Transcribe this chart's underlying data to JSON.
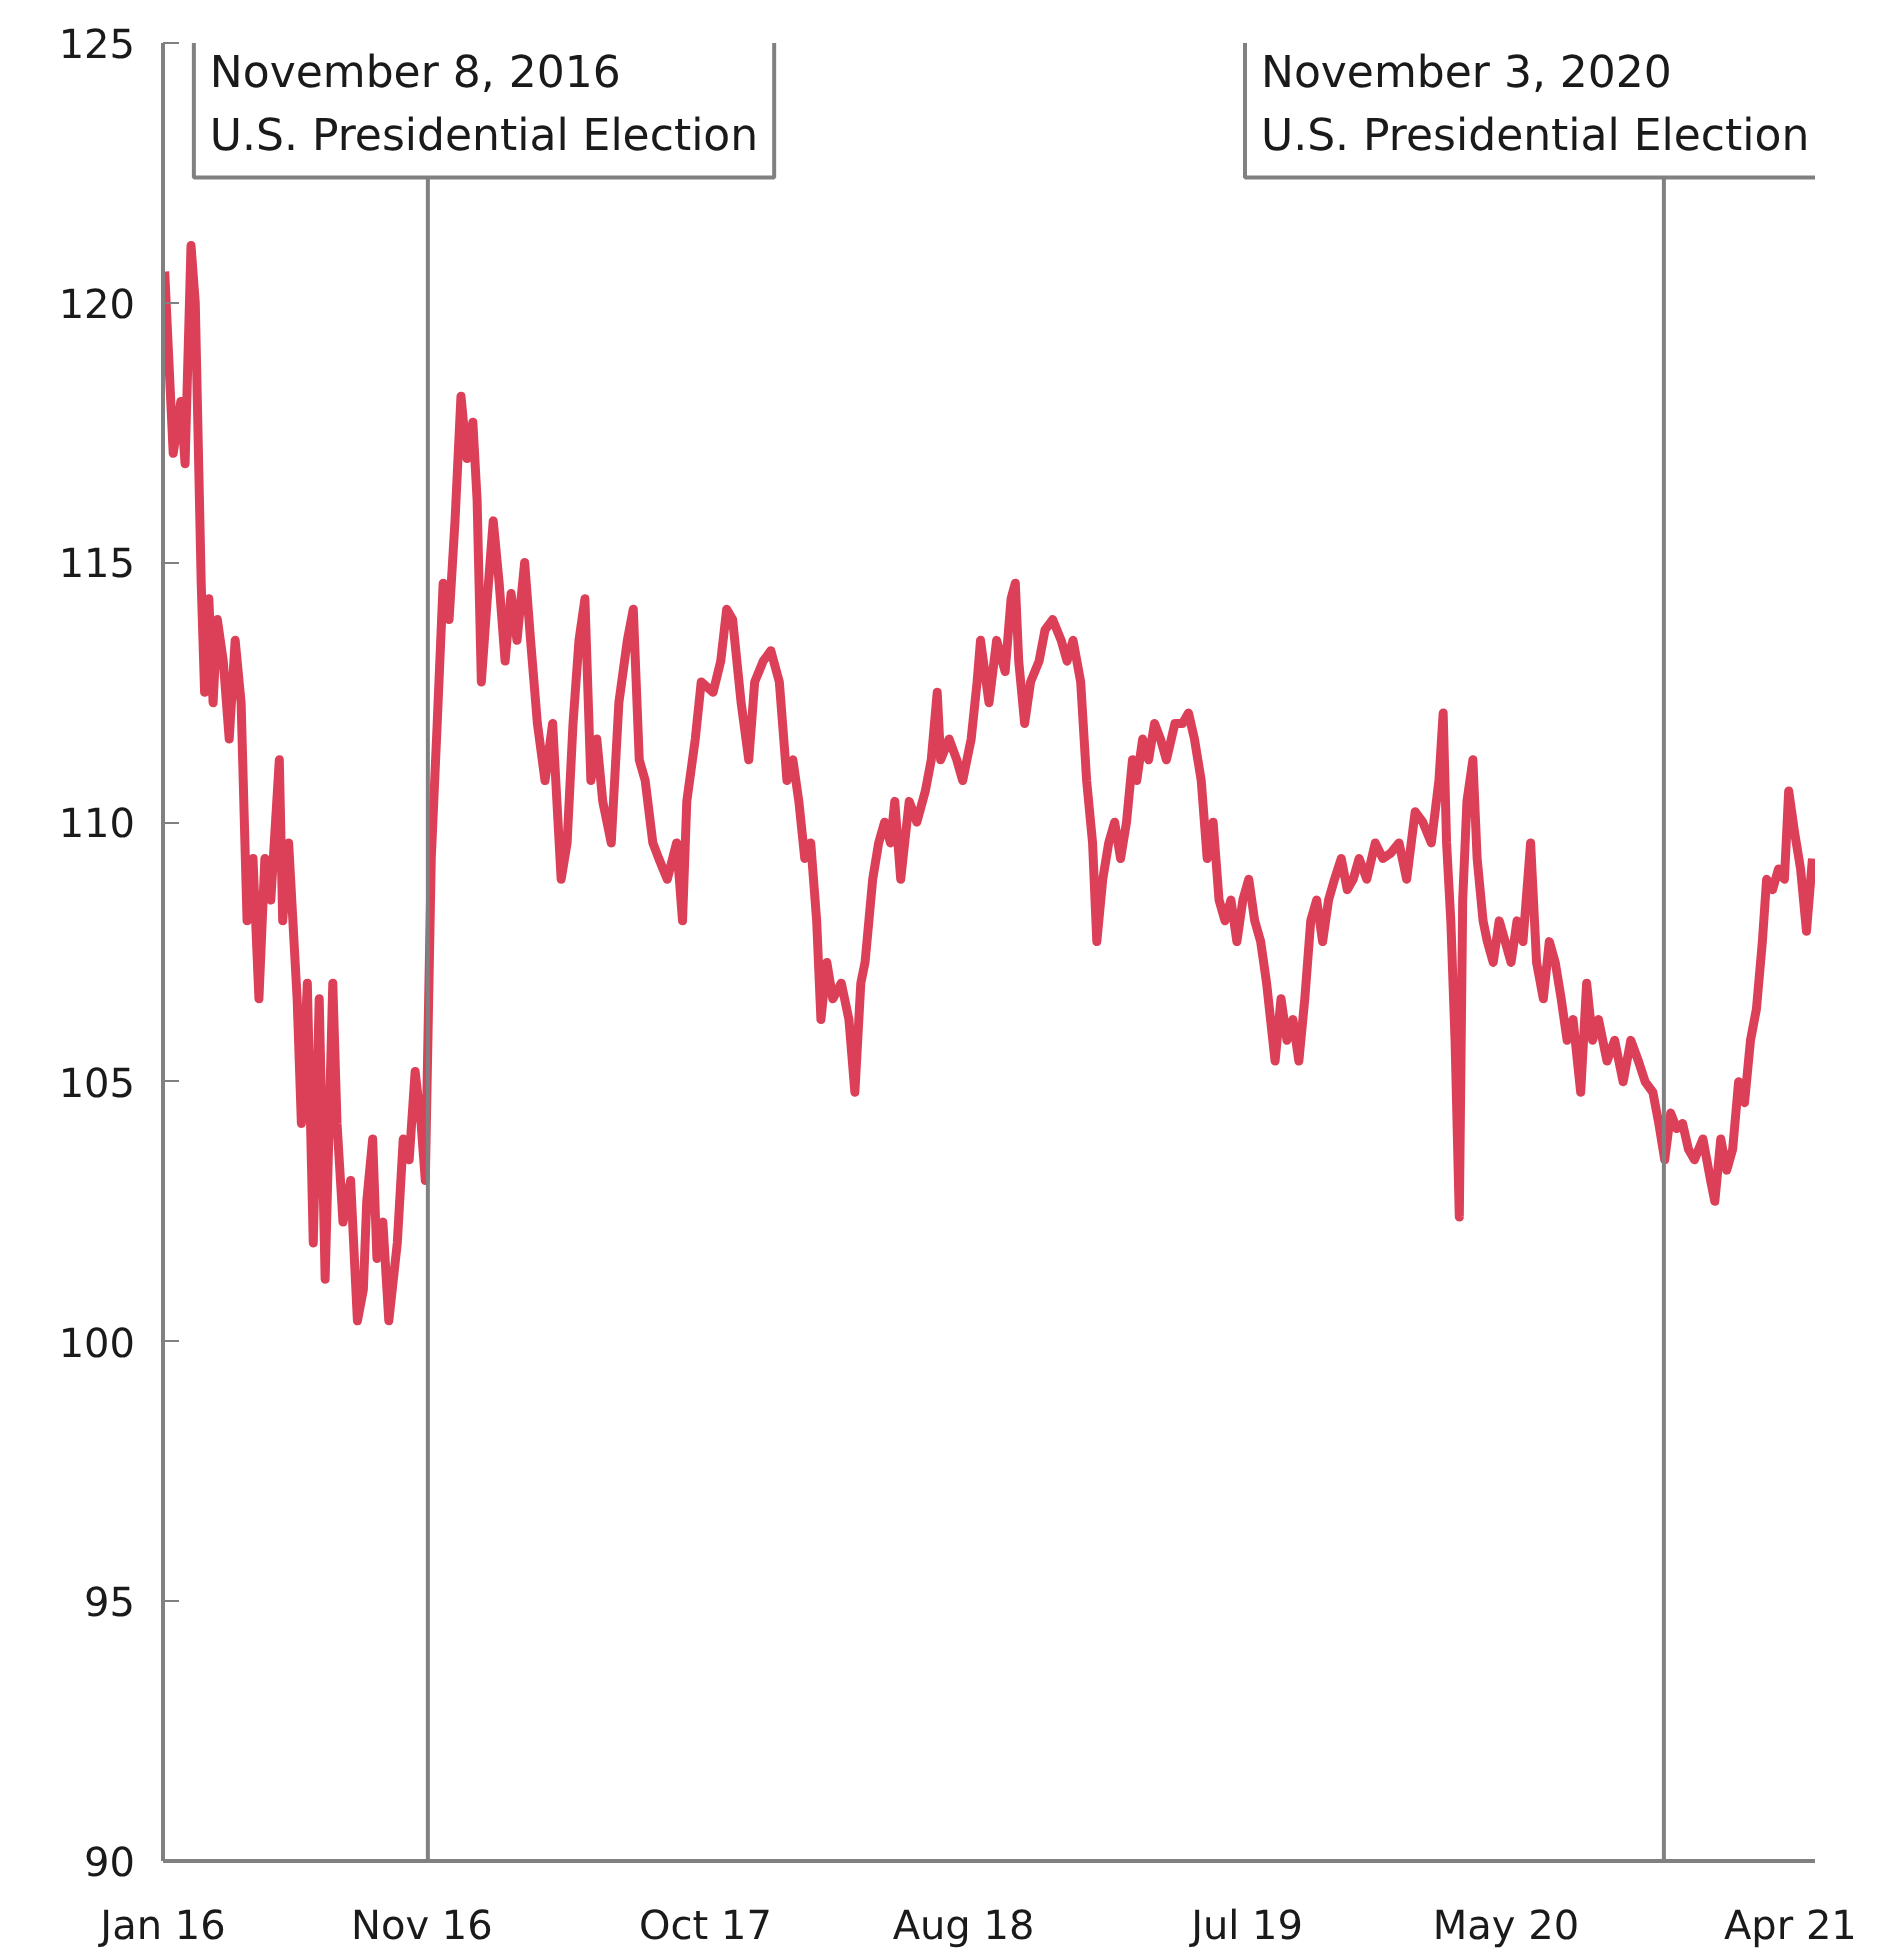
{
  "chart_data": {
    "type": "line",
    "x": [
      "2016-01-03",
      "2016-01-13",
      "2016-01-22",
      "2016-01-27",
      "2016-02-03",
      "2016-02-08",
      "2016-02-15",
      "2016-02-19",
      "2016-02-24",
      "2016-02-29",
      "2016-03-05",
      "2016-03-12",
      "2016-03-19",
      "2016-03-26",
      "2016-04-02",
      "2016-04-09",
      "2016-04-16",
      "2016-04-23",
      "2016-04-30",
      "2016-05-07",
      "2016-05-17",
      "2016-05-21",
      "2016-05-28",
      "2016-06-07",
      "2016-06-12",
      "2016-06-19",
      "2016-06-26",
      "2016-07-03",
      "2016-07-10",
      "2016-07-19",
      "2016-07-24",
      "2016-07-31",
      "2016-08-09",
      "2016-08-17",
      "2016-08-24",
      "2016-08-28",
      "2016-09-04",
      "2016-09-09",
      "2016-09-16",
      "2016-09-23",
      "2016-10-03",
      "2016-10-10",
      "2016-10-17",
      "2016-10-24",
      "2016-10-31",
      "2016-11-05",
      "2016-11-12",
      "2016-11-19",
      "2016-11-26",
      "2016-12-03",
      "2016-12-10",
      "2016-12-17",
      "2016-12-24",
      "2016-12-31",
      "2017-01-05",
      "2017-01-10",
      "2017-01-17",
      "2017-01-24",
      "2017-01-31",
      "2017-02-07",
      "2017-02-14",
      "2017-02-21",
      "2017-03-02",
      "2017-03-09",
      "2017-03-17",
      "2017-03-26",
      "2017-04-04",
      "2017-04-14",
      "2017-04-21",
      "2017-04-28",
      "2017-05-05",
      "2017-05-12",
      "2017-05-19",
      "2017-05-26",
      "2017-06-02",
      "2017-06-12",
      "2017-06-21",
      "2017-07-01",
      "2017-07-08",
      "2017-07-15",
      "2017-07-22",
      "2017-07-31",
      "2017-08-07",
      "2017-08-17",
      "2017-08-28",
      "2017-09-04",
      "2017-09-09",
      "2017-09-19",
      "2017-09-26",
      "2017-10-10",
      "2017-10-19",
      "2017-10-26",
      "2017-11-02",
      "2017-11-12",
      "2017-11-21",
      "2017-11-28",
      "2017-12-08",
      "2017-12-17",
      "2017-12-27",
      "2018-01-05",
      "2018-01-12",
      "2018-01-19",
      "2018-01-26",
      "2018-02-02",
      "2018-02-09",
      "2018-02-14",
      "2018-02-21",
      "2018-02-28",
      "2018-03-10",
      "2018-03-19",
      "2018-03-26",
      "2018-04-02",
      "2018-04-07",
      "2018-04-16",
      "2018-04-23",
      "2018-04-30",
      "2018-05-07",
      "2018-05-12",
      "2018-05-19",
      "2018-05-29",
      "2018-06-07",
      "2018-06-17",
      "2018-06-24",
      "2018-07-01",
      "2018-07-05",
      "2018-07-15",
      "2018-07-24",
      "2018-07-31",
      "2018-08-10",
      "2018-08-17",
      "2018-08-21",
      "2018-08-31",
      "2018-09-09",
      "2018-09-19",
      "2018-09-26",
      "2018-10-01",
      "2018-10-05",
      "2018-10-12",
      "2018-10-19",
      "2018-10-29",
      "2018-11-05",
      "2018-11-14",
      "2018-11-24",
      "2018-12-01",
      "2018-12-08",
      "2018-12-17",
      "2018-12-24",
      "2018-12-31",
      "2019-01-05",
      "2019-01-12",
      "2019-01-19",
      "2019-01-26",
      "2019-02-02",
      "2019-02-09",
      "2019-02-16",
      "2019-02-21",
      "2019-02-28",
      "2019-03-07",
      "2019-03-14",
      "2019-03-21",
      "2019-03-28",
      "2019-04-07",
      "2019-04-16",
      "2019-04-23",
      "2019-04-30",
      "2019-05-08",
      "2019-05-15",
      "2019-05-22",
      "2019-05-29",
      "2019-06-05",
      "2019-06-12",
      "2019-06-19",
      "2019-06-26",
      "2019-07-03",
      "2019-07-10",
      "2019-07-17",
      "2019-07-24",
      "2019-08-03",
      "2019-08-10",
      "2019-08-17",
      "2019-08-24",
      "2019-08-31",
      "2019-09-07",
      "2019-09-14",
      "2019-09-21",
      "2019-09-28",
      "2019-10-05",
      "2019-10-12",
      "2019-10-20",
      "2019-10-27",
      "2019-11-03",
      "2019-11-10",
      "2019-11-19",
      "2019-11-29",
      "2019-12-08",
      "2019-12-17",
      "2019-12-27",
      "2020-01-05",
      "2020-01-15",
      "2020-01-24",
      "2020-02-03",
      "2020-02-12",
      "2020-02-17",
      "2020-02-21",
      "2020-02-26",
      "2020-03-02",
      "2020-03-07",
      "2020-03-11",
      "2020-03-16",
      "2020-03-23",
      "2020-03-28",
      "2020-04-04",
      "2020-04-09",
      "2020-04-16",
      "2020-04-23",
      "2020-04-30",
      "2020-05-07",
      "2020-05-14",
      "2020-05-21",
      "2020-05-30",
      "2020-06-06",
      "2020-06-14",
      "2020-06-21",
      "2020-06-28",
      "2020-07-05",
      "2020-07-12",
      "2020-07-19",
      "2020-07-28",
      "2020-08-04",
      "2020-08-11",
      "2020-08-18",
      "2020-08-28",
      "2020-09-06",
      "2020-09-16",
      "2020-09-25",
      "2020-10-04",
      "2020-10-12",
      "2020-10-21",
      "2020-10-28",
      "2020-11-04",
      "2020-11-11",
      "2020-11-18",
      "2020-11-25",
      "2020-12-02",
      "2020-12-09",
      "2020-12-19",
      "2020-12-28",
      "2021-01-02",
      "2021-01-09",
      "2021-01-16",
      "2021-01-23",
      "2021-01-30",
      "2021-02-06",
      "2021-02-13",
      "2021-02-20",
      "2021-02-27",
      "2021-03-04",
      "2021-03-11",
      "2021-03-18",
      "2021-03-25",
      "2021-03-30",
      "2021-04-06",
      "2021-04-13",
      "2021-04-20",
      "2021-04-27"
    ],
    "series": [
      {
        "color": "#dc4058",
        "values": [
          120.6,
          117.1,
          118.1,
          116.9,
          121.1,
          120.0,
          114.6,
          112.5,
          114.3,
          112.3,
          113.9,
          113.1,
          111.6,
          113.5,
          112.3,
          108.1,
          109.3,
          106.6,
          109.3,
          108.5,
          111.2,
          108.1,
          109.6,
          106.6,
          104.2,
          106.9,
          101.9,
          106.6,
          101.2,
          106.9,
          104.2,
          102.3,
          103.1,
          100.4,
          101.0,
          102.7,
          103.9,
          101.6,
          102.3,
          100.4,
          101.9,
          103.9,
          103.5,
          105.2,
          104.2,
          103.1,
          109.3,
          111.9,
          114.6,
          113.9,
          115.8,
          118.2,
          117.0,
          117.7,
          116.2,
          112.7,
          114.3,
          115.8,
          114.6,
          113.1,
          114.4,
          113.5,
          115.0,
          113.5,
          111.9,
          110.8,
          111.9,
          108.9,
          109.6,
          111.9,
          113.5,
          114.3,
          110.8,
          111.6,
          110.4,
          109.6,
          112.3,
          113.5,
          114.1,
          111.2,
          110.8,
          109.6,
          109.3,
          108.9,
          109.6,
          108.1,
          110.4,
          111.6,
          112.7,
          112.5,
          113.1,
          114.1,
          113.9,
          112.3,
          111.2,
          112.7,
          113.1,
          113.3,
          112.7,
          110.8,
          111.2,
          110.4,
          109.3,
          109.6,
          108.1,
          106.2,
          107.3,
          106.6,
          106.9,
          106.2,
          104.8,
          106.9,
          107.3,
          108.9,
          109.6,
          110.0,
          109.6,
          110.4,
          108.9,
          110.4,
          110.0,
          110.6,
          111.2,
          112.5,
          111.2,
          111.6,
          111.2,
          110.8,
          111.6,
          112.7,
          113.5,
          112.3,
          113.5,
          112.9,
          114.3,
          114.6,
          113.1,
          111.9,
          112.7,
          113.1,
          113.7,
          113.9,
          113.5,
          113.1,
          113.5,
          112.7,
          110.8,
          109.6,
          107.7,
          108.9,
          109.6,
          110.0,
          109.3,
          110.0,
          111.2,
          110.8,
          111.6,
          111.2,
          111.9,
          111.6,
          111.2,
          111.9,
          111.9,
          112.1,
          111.6,
          110.8,
          109.3,
          110.0,
          108.5,
          108.1,
          108.5,
          107.7,
          108.5,
          108.9,
          108.1,
          107.7,
          106.9,
          105.4,
          106.6,
          105.8,
          106.2,
          105.4,
          106.6,
          108.1,
          108.5,
          107.7,
          108.5,
          108.9,
          109.3,
          108.7,
          108.9,
          109.3,
          108.9,
          109.6,
          109.3,
          109.4,
          109.6,
          108.9,
          110.2,
          110.0,
          109.6,
          110.8,
          112.1,
          109.6,
          108.1,
          105.8,
          102.4,
          108.5,
          110.4,
          111.2,
          109.3,
          108.1,
          107.7,
          107.3,
          108.1,
          107.7,
          107.3,
          108.1,
          107.7,
          109.6,
          107.3,
          106.6,
          107.7,
          107.3,
          106.6,
          105.8,
          106.2,
          104.8,
          106.9,
          105.8,
          106.2,
          105.4,
          105.8,
          105.0,
          105.8,
          105.4,
          105.0,
          104.8,
          104.2,
          103.5,
          104.4,
          104.1,
          104.2,
          103.7,
          103.5,
          103.9,
          103.1,
          102.7,
          103.9,
          103.3,
          103.7,
          105.0,
          104.6,
          105.8,
          106.4,
          107.7,
          108.9,
          108.7,
          109.1,
          108.9,
          110.6,
          109.8,
          109.1,
          107.9,
          109.3
        ]
      }
    ],
    "xlim": [
      "2016-01-01",
      "2021-04-30"
    ],
    "xticks": [
      {
        "value": "2016-01-01",
        "label": "Jan 16"
      },
      {
        "value": "2016-11-01",
        "label": "Nov 16"
      },
      {
        "value": "2017-10-01",
        "label": "Oct 17"
      },
      {
        "value": "2018-08-01",
        "label": "Aug 18"
      },
      {
        "value": "2019-07-01",
        "label": "Jul 19"
      },
      {
        "value": "2020-05-01",
        "label": "May 20"
      },
      {
        "value": "2021-04-01",
        "label": "Apr 21"
      }
    ],
    "ylim": [
      90,
      125
    ],
    "yticks": [
      90,
      95,
      100,
      105,
      110,
      115,
      120,
      125
    ],
    "ref_lines": [
      {
        "axis": "x",
        "value": "2016-11-08",
        "label": "November 8, 2016\nU.S. Presidential Election",
        "color": "#808080"
      },
      {
        "axis": "x",
        "value": "2020-11-03",
        "label": "November 3, 2020\nU.S. Presidential Election",
        "color": "#808080"
      }
    ],
    "grid": false,
    "marker": "none",
    "line_style": "solid"
  }
}
